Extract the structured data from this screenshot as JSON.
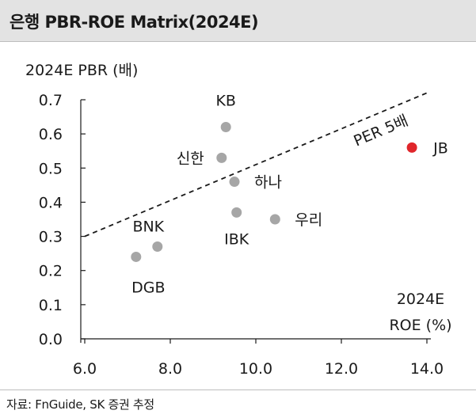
{
  "header": {
    "title": "은행 PBR-ROE Matrix(2024E)"
  },
  "footer": {
    "source": "자료: FnGuide, SK 증권 추정"
  },
  "chart_data": {
    "type": "scatter",
    "title": "은행 PBR-ROE Matrix(2024E)",
    "ylabel": "2024E PBR (배)",
    "xlabel_lines": [
      "2024E",
      "ROE (%)"
    ],
    "xlim": [
      6.0,
      14.0
    ],
    "ylim": [
      0.0,
      0.7
    ],
    "xticks": [
      "6.0",
      "8.0",
      "10.0",
      "12.0",
      "14.0"
    ],
    "yticks": [
      "0.0",
      "0.1",
      "0.2",
      "0.3",
      "0.4",
      "0.5",
      "0.6",
      "0.7"
    ],
    "grid": false,
    "legend": "none",
    "points": [
      {
        "name": "KB",
        "x": 9.3,
        "y": 0.62,
        "color": "#a6a6a6"
      },
      {
        "name": "신한",
        "x": 9.2,
        "y": 0.53,
        "color": "#a6a6a6"
      },
      {
        "name": "하나",
        "x": 9.5,
        "y": 0.46,
        "color": "#a6a6a6"
      },
      {
        "name": "우리",
        "x": 10.45,
        "y": 0.35,
        "color": "#a6a6a6"
      },
      {
        "name": "IBK",
        "x": 9.55,
        "y": 0.37,
        "color": "#a6a6a6"
      },
      {
        "name": "BNK",
        "x": 7.7,
        "y": 0.27,
        "color": "#a6a6a6"
      },
      {
        "name": "DGB",
        "x": 7.2,
        "y": 0.24,
        "color": "#a6a6a6"
      },
      {
        "name": "JB",
        "x": 13.65,
        "y": 0.56,
        "color": "#e0262b"
      }
    ],
    "reference_line": {
      "label": "PER 5배",
      "style": "dashed",
      "x": [
        6.0,
        14.0
      ],
      "y": [
        0.3,
        0.72
      ]
    }
  }
}
